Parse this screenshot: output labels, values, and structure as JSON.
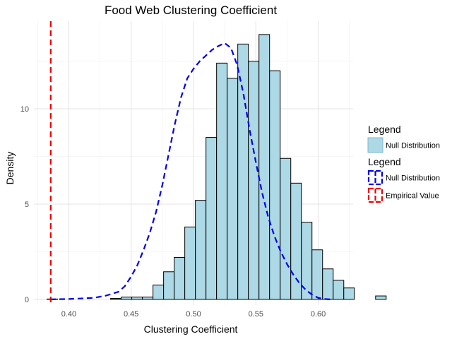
{
  "chart_data": {
    "type": "bar",
    "title": "Food Web Clustering Coefficient",
    "xlabel": "Clustering Coefficient",
    "ylabel": "Density",
    "xlim": [
      0.372,
      0.628
    ],
    "ylim": [
      -0.3,
      14.6
    ],
    "x_ticks": [
      {
        "value": 0.4,
        "label": "0.40"
      },
      {
        "value": 0.45,
        "label": "0.45"
      },
      {
        "value": 0.5,
        "label": "0.50"
      },
      {
        "value": 0.55,
        "label": "0.55"
      },
      {
        "value": 0.6,
        "label": "0.60"
      }
    ],
    "y_ticks": [
      {
        "value": 0,
        "label": "0"
      },
      {
        "value": 5,
        "label": "5"
      },
      {
        "value": 10,
        "label": "10"
      }
    ],
    "grid": true,
    "histogram": {
      "name": "Null Distribution",
      "bin_start": 0.3825,
      "bin_width": 0.0085,
      "fill": "#add8e6",
      "stroke": "#000000",
      "values": [
        0.02,
        0.0,
        0.0,
        0.0,
        0.0,
        0.0,
        0.05,
        0.12,
        0.12,
        0.12,
        0.75,
        1.45,
        2.2,
        3.8,
        5.2,
        8.5,
        12.4,
        11.6,
        13.4,
        12.5,
        13.9,
        12.0,
        7.4,
        6.1,
        4.05,
        2.6,
        1.6,
        1.0,
        0.6,
        0.0,
        0.0,
        0.18
      ]
    },
    "density_curve": {
      "name": "Null Distribution",
      "color": "#0000ee",
      "style": "dashed",
      "x": [
        0.385,
        0.4,
        0.42,
        0.43,
        0.44,
        0.445,
        0.45,
        0.455,
        0.46,
        0.465,
        0.47,
        0.475,
        0.48,
        0.485,
        0.49,
        0.495,
        0.5,
        0.505,
        0.51,
        0.515,
        0.52,
        0.525,
        0.53,
        0.535,
        0.54,
        0.545,
        0.55,
        0.555,
        0.56,
        0.565,
        0.57,
        0.575,
        0.58,
        0.585,
        0.59,
        0.595,
        0.6,
        0.605,
        0.61
      ],
      "y": [
        0.0,
        0.02,
        0.08,
        0.2,
        0.4,
        0.7,
        1.2,
        1.8,
        2.6,
        3.5,
        4.6,
        6.0,
        7.6,
        9.2,
        10.6,
        11.6,
        12.1,
        12.5,
        12.8,
        13.1,
        13.3,
        13.45,
        13.2,
        12.3,
        10.8,
        8.9,
        7.2,
        5.6,
        4.3,
        3.3,
        2.5,
        1.85,
        1.3,
        0.85,
        0.5,
        0.25,
        0.08,
        0.02,
        0.0
      ]
    },
    "empirical_value": {
      "name": "Empirical Value",
      "x": 0.3855,
      "color": "#ee0000",
      "style": "dashed"
    },
    "legend": {
      "placement": "right",
      "groups": [
        {
          "title": "Legend",
          "items": [
            {
              "label": "Null Distribution",
              "kind": "fill",
              "fill": "#add8e6",
              "stroke": "#7fb8cc"
            }
          ]
        },
        {
          "title": "Legend",
          "items": [
            {
              "label": "Null Distribution",
              "kind": "dashed-line",
              "color": "#0000ee"
            },
            {
              "label": "Empirical Value",
              "kind": "dashed-line",
              "color": "#ee0000"
            }
          ]
        }
      ]
    }
  }
}
